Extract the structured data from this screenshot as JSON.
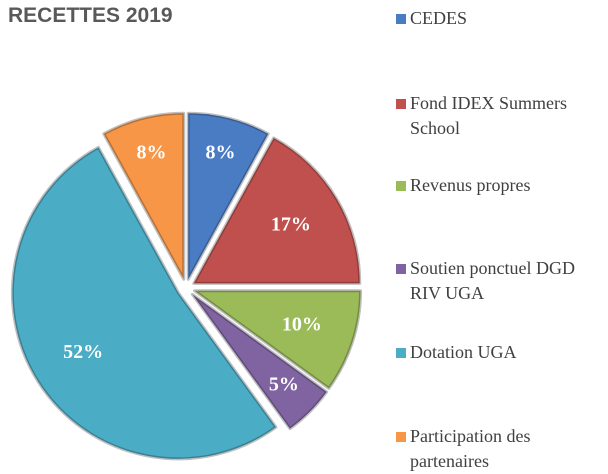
{
  "chart_data": {
    "type": "pie",
    "title": "RECETTES 2019",
    "categories": [
      "CEDES",
      "Fond IDEX Summers School",
      "Revenus propres",
      "Soutien ponctuel DGD RIV UGA",
      "Dotation UGA",
      "Participation des partenaires"
    ],
    "values": [
      8,
      17,
      10,
      5,
      52,
      8
    ],
    "value_labels": [
      "8%",
      "17%",
      "10%",
      "5%",
      "52%",
      "8%"
    ],
    "colors": [
      "#4a7cc4",
      "#c0504d",
      "#9bbb59",
      "#8064a2",
      "#4bacc6",
      "#f79646"
    ],
    "legend": "right"
  }
}
